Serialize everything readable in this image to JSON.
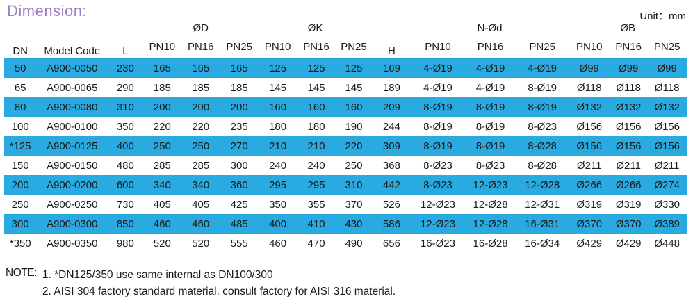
{
  "title": "Dimension:",
  "unit_label": "Unit：mm",
  "colors": {
    "row_highlight": "#29abe2",
    "title_purple": "#9b7ec8",
    "text": "#1a1a1a"
  },
  "table": {
    "simple_headers": {
      "dn": "DN",
      "model": "Model Code",
      "l": "L",
      "h": "H"
    },
    "group_labels": [
      "ØD",
      "ØK",
      "N-Ød",
      "ØB"
    ],
    "pn_labels": [
      "PN10",
      "PN16",
      "PN25"
    ],
    "rows": [
      {
        "dn": "50",
        "model": "A900-0050",
        "l": "230",
        "d": [
          "165",
          "165",
          "165"
        ],
        "k": [
          "125",
          "125",
          "125"
        ],
        "h": "169",
        "n": [
          "4-Ø19",
          "4-Ø19",
          "4-Ø19"
        ],
        "b": [
          "Ø99",
          "Ø99",
          "Ø99"
        ],
        "highlight": true
      },
      {
        "dn": "65",
        "model": "A900-0065",
        "l": "290",
        "d": [
          "185",
          "185",
          "185"
        ],
        "k": [
          "145",
          "145",
          "145"
        ],
        "h": "189",
        "n": [
          "4-Ø19",
          "4-Ø19",
          "8-Ø19"
        ],
        "b": [
          "Ø118",
          "Ø118",
          "Ø118"
        ],
        "highlight": false
      },
      {
        "dn": "80",
        "model": "A900-0080",
        "l": "310",
        "d": [
          "200",
          "200",
          "200"
        ],
        "k": [
          "160",
          "160",
          "160"
        ],
        "h": "209",
        "n": [
          "8-Ø19",
          "8-Ø19",
          "8-Ø19"
        ],
        "b": [
          "Ø132",
          "Ø132",
          "Ø132"
        ],
        "highlight": true
      },
      {
        "dn": "100",
        "model": "A900-0100",
        "l": "350",
        "d": [
          "220",
          "220",
          "235"
        ],
        "k": [
          "180",
          "180",
          "190"
        ],
        "h": "244",
        "n": [
          "8-Ø19",
          "8-Ø19",
          "8-Ø23"
        ],
        "b": [
          "Ø156",
          "Ø156",
          "Ø156"
        ],
        "highlight": false
      },
      {
        "dn": "*125",
        "model": "A900-0125",
        "l": "400",
        "d": [
          "250",
          "250",
          "270"
        ],
        "k": [
          "210",
          "210",
          "220"
        ],
        "h": "309",
        "n": [
          "8-Ø19",
          "8-Ø19",
          "8-Ø28"
        ],
        "b": [
          "Ø156",
          "Ø156",
          "Ø156"
        ],
        "highlight": true
      },
      {
        "dn": "150",
        "model": "A900-0150",
        "l": "480",
        "d": [
          "285",
          "285",
          "300"
        ],
        "k": [
          "240",
          "240",
          "250"
        ],
        "h": "368",
        "n": [
          "8-Ø23",
          "8-Ø23",
          "8-Ø28"
        ],
        "b": [
          "Ø211",
          "Ø211",
          "Ø211"
        ],
        "highlight": false
      },
      {
        "dn": "200",
        "model": "A900-0200",
        "l": "600",
        "d": [
          "340",
          "340",
          "360"
        ],
        "k": [
          "295",
          "295",
          "310"
        ],
        "h": "442",
        "n": [
          "8-Ø23",
          "12-Ø23",
          "12-Ø28"
        ],
        "b": [
          "Ø266",
          "Ø266",
          "Ø274"
        ],
        "highlight": true
      },
      {
        "dn": "250",
        "model": "A900-0250",
        "l": "730",
        "d": [
          "405",
          "405",
          "425"
        ],
        "k": [
          "350",
          "355",
          "370"
        ],
        "h": "526",
        "n": [
          "12-Ø23",
          "12-Ø28",
          "12-Ø31"
        ],
        "b": [
          "Ø319",
          "Ø319",
          "Ø330"
        ],
        "highlight": false
      },
      {
        "dn": "300",
        "model": "A900-0300",
        "l": "850",
        "d": [
          "460",
          "460",
          "485"
        ],
        "k": [
          "400",
          "410",
          "430"
        ],
        "h": "586",
        "n": [
          "12-Ø23",
          "12-Ø28",
          "16-Ø31"
        ],
        "b": [
          "Ø370",
          "Ø370",
          "Ø389"
        ],
        "highlight": true
      },
      {
        "dn": "*350",
        "model": "A900-0350",
        "l": "980",
        "d": [
          "520",
          "520",
          "555"
        ],
        "k": [
          "460",
          "470",
          "490"
        ],
        "h": "656",
        "n": [
          "16-Ø23",
          "16-Ø28",
          "16-Ø34"
        ],
        "b": [
          "Ø429",
          "Ø429",
          "Ø448"
        ],
        "highlight": false
      }
    ]
  },
  "notes": {
    "label": "NOTE:",
    "items": [
      "1. *DN125/350 use same internal as DN100/300",
      "2. AISI 304 factory standard material. consult factory for AISI 316 material."
    ]
  }
}
